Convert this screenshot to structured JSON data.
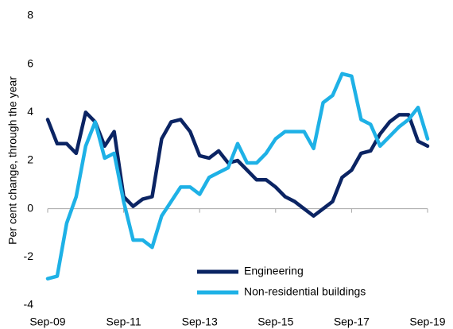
{
  "chart_data": {
    "type": "line",
    "y_label": "Per cent change, through the year",
    "categories": [
      "Sep-09",
      null,
      null,
      null,
      null,
      null,
      null,
      null,
      "Sep-11",
      null,
      null,
      null,
      null,
      null,
      null,
      null,
      "Sep-13",
      null,
      null,
      null,
      null,
      null,
      null,
      null,
      "Sep-15",
      null,
      null,
      null,
      null,
      null,
      null,
      null,
      "Sep-17",
      null,
      null,
      null,
      null,
      null,
      null,
      null,
      "Sep-19"
    ],
    "series": [
      {
        "name": "Engineering",
        "color": "#0b2463",
        "values": [
          3.7,
          2.7,
          2.7,
          2.3,
          4.0,
          3.6,
          2.6,
          3.2,
          0.5,
          0.1,
          0.4,
          0.5,
          2.9,
          3.6,
          3.7,
          3.2,
          2.2,
          2.1,
          2.4,
          1.9,
          2.0,
          1.6,
          1.2,
          1.2,
          0.9,
          0.5,
          0.3,
          0.0,
          -0.3,
          0.0,
          0.3,
          1.3,
          1.6,
          2.3,
          2.4,
          3.1,
          3.6,
          3.9,
          3.9,
          2.8,
          2.6
        ]
      },
      {
        "name": "Non-residential buildings",
        "color": "#1eb1e6",
        "values": [
          -2.9,
          -2.8,
          -0.6,
          0.5,
          2.6,
          3.6,
          2.1,
          2.3,
          0.3,
          -1.3,
          -1.3,
          -1.6,
          -0.3,
          0.3,
          0.9,
          0.9,
          0.6,
          1.3,
          1.5,
          1.7,
          2.7,
          1.9,
          1.9,
          2.3,
          2.9,
          3.2,
          3.2,
          3.2,
          2.5,
          4.4,
          4.7,
          5.6,
          5.5,
          3.7,
          3.5,
          2.6,
          3.0,
          3.4,
          3.7,
          4.2,
          2.9
        ]
      }
    ],
    "ylim": [
      -4,
      8
    ],
    "yticks": [
      -4,
      -2,
      0,
      2,
      4,
      6,
      8
    ],
    "grid": false,
    "legend": "lower right"
  }
}
